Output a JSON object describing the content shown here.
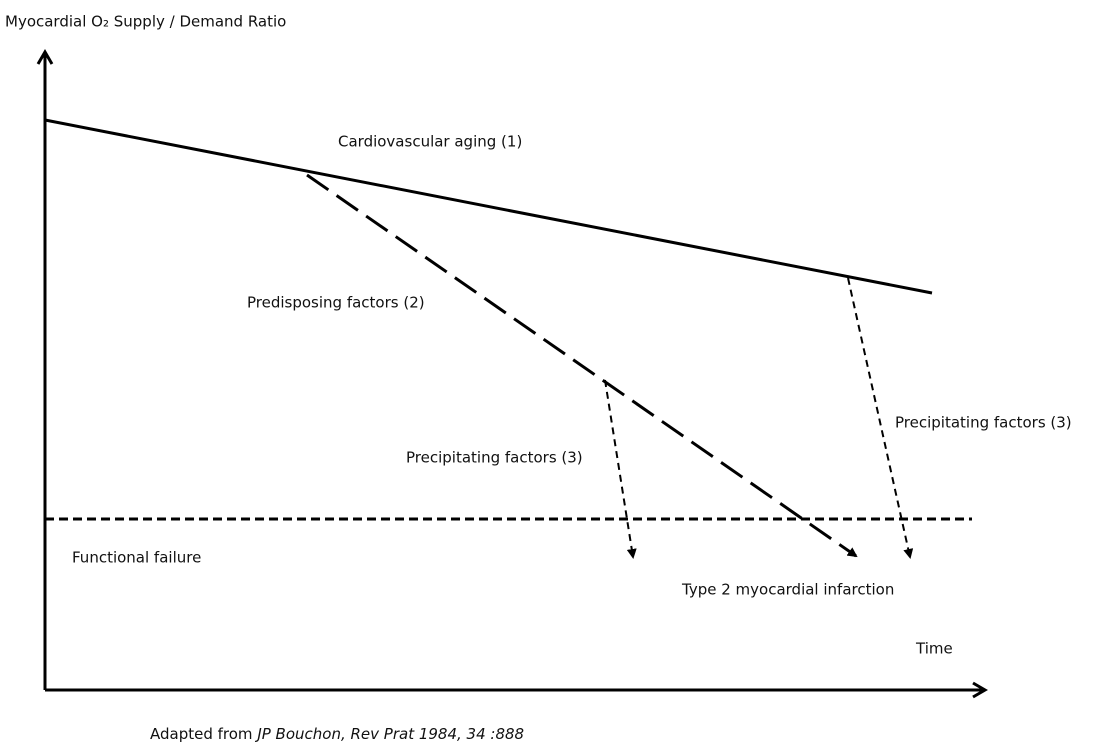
{
  "y_axis_label": "Myocardial O₂ Supply / Demand Ratio",
  "x_axis_label": "Time",
  "curves": {
    "aging": "Cardiovascular aging (1)",
    "predisposing": "Predisposing factors (2)"
  },
  "precipitating": [
    "Precipitating factors (3)",
    "Precipitating factors (3)"
  ],
  "threshold": "Functional failure",
  "outcome": "Type 2 myocardial infarction",
  "source": {
    "prefix": "Adapted from ",
    "citation": "JP Bouchon, Rev Prat 1984, 34 :888"
  }
}
